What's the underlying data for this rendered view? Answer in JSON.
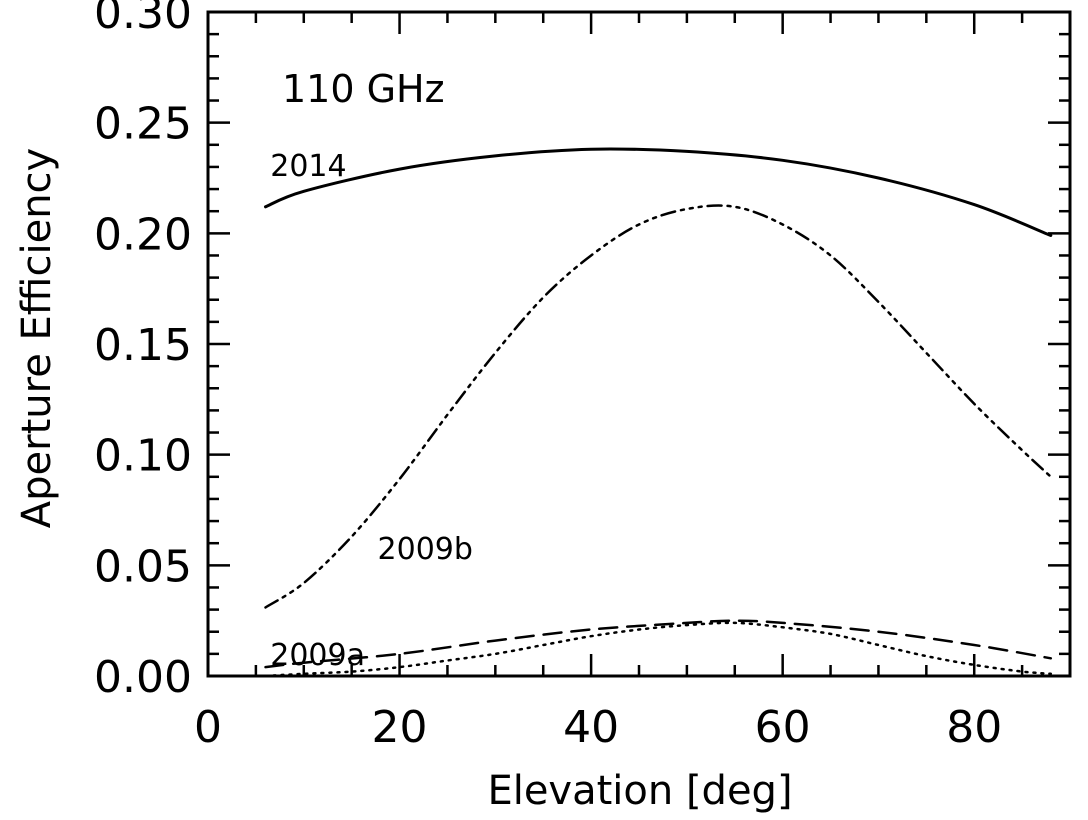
{
  "chart_data": {
    "type": "line",
    "title": "",
    "annotation": "110 GHz",
    "xlabel": "Elevation [deg]",
    "ylabel": "Aperture Efficiency",
    "xlim": [
      0,
      90
    ],
    "ylim": [
      0.0,
      0.3
    ],
    "x_ticks": [
      0,
      20,
      40,
      60,
      80
    ],
    "x_tick_labels": [
      "0",
      "20",
      "40",
      "60",
      "80"
    ],
    "y_ticks": [
      0.0,
      0.05,
      0.1,
      0.15,
      0.2,
      0.25,
      0.3
    ],
    "y_tick_labels": [
      "0.00",
      "0.05",
      "0.10",
      "0.15",
      "0.20",
      "0.25",
      "0.30"
    ],
    "grid": false,
    "legend": "none",
    "series": [
      {
        "name": "2014",
        "style": "solid",
        "x": [
          6,
          10,
          20,
          30,
          40,
          50,
          60,
          70,
          80,
          88
        ],
        "values": [
          0.212,
          0.219,
          0.229,
          0.235,
          0.238,
          0.237,
          0.233,
          0.225,
          0.213,
          0.199
        ]
      },
      {
        "name": "2009b",
        "style": "dashdot",
        "x": [
          6,
          10,
          15,
          20,
          25,
          30,
          35,
          40,
          45,
          50,
          55,
          60,
          65,
          70,
          75,
          80,
          85,
          88
        ],
        "values": [
          0.031,
          0.042,
          0.063,
          0.089,
          0.118,
          0.146,
          0.171,
          0.19,
          0.204,
          0.211,
          0.212,
          0.204,
          0.19,
          0.169,
          0.146,
          0.123,
          0.102,
          0.09
        ]
      },
      {
        "name": "2009a",
        "style": "dashed",
        "x": [
          6,
          10,
          20,
          30,
          40,
          50,
          55,
          60,
          70,
          80,
          88
        ],
        "values": [
          0.004,
          0.006,
          0.01,
          0.016,
          0.021,
          0.024,
          0.025,
          0.024,
          0.02,
          0.014,
          0.008
        ]
      },
      {
        "name": "",
        "style": "dotted",
        "x": [
          6,
          10,
          15,
          20,
          25,
          30,
          35,
          40,
          45,
          50,
          55,
          60,
          65,
          70,
          75,
          80,
          85,
          88
        ],
        "values": [
          0.0,
          0.001,
          0.002,
          0.004,
          0.007,
          0.01,
          0.014,
          0.018,
          0.021,
          0.023,
          0.024,
          0.022,
          0.019,
          0.014,
          0.009,
          0.005,
          0.002,
          0.001
        ]
      }
    ],
    "series_labels": [
      {
        "text": "2014",
        "x": 6.5,
        "y": 0.225
      },
      {
        "text": "2009b",
        "x": 17.7,
        "y": 0.052
      },
      {
        "text": "2009a",
        "x": 6.5,
        "y": 0.004
      }
    ]
  }
}
